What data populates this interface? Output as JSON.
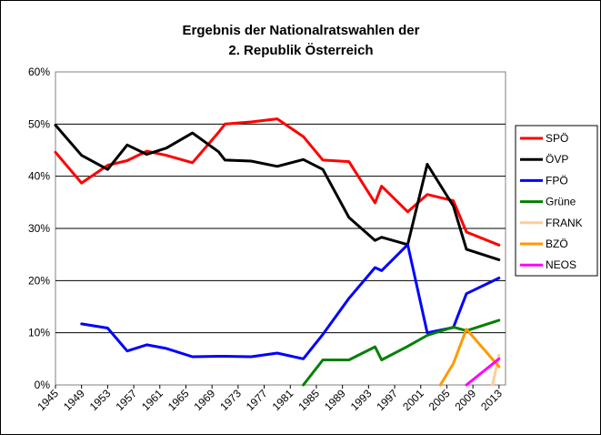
{
  "chart_data": {
    "type": "line",
    "title": "Ergebnis der Nationalratswahlen der",
    "subtitle": "2. Republik Österreich",
    "xlabel": "",
    "ylabel": "",
    "xlim": [
      1945,
      2014
    ],
    "ylim": [
      0,
      60
    ],
    "y_ticks": [
      "0%",
      "10%",
      "20%",
      "30%",
      "40%",
      "50%",
      "60%"
    ],
    "x_ticks": [
      "1945",
      "1949",
      "1953",
      "1957",
      "1961",
      "1965",
      "1969",
      "1973",
      "1977",
      "1981",
      "1985",
      "1989",
      "1993",
      "1997",
      "2001",
      "2005",
      "2009",
      "2013"
    ],
    "grid": true,
    "legend_position": "right",
    "plot_background": "#ffffff",
    "series": [
      {
        "name": "SPÖ",
        "color": "#ff0000",
        "x": [
          1945,
          1949,
          1953,
          1956,
          1959,
          1962,
          1966,
          1970,
          1971,
          1975,
          1979,
          1983,
          1986,
          1990,
          1994,
          1995,
          1999,
          2002,
          2006,
          2008,
          2013
        ],
        "y": [
          44.6,
          38.7,
          42.1,
          43.0,
          44.8,
          44.0,
          42.6,
          48.4,
          50.0,
          50.4,
          51.0,
          47.6,
          43.1,
          42.8,
          34.9,
          38.1,
          33.2,
          36.5,
          35.3,
          29.3,
          26.8
        ]
      },
      {
        "name": "ÖVP",
        "color": "#000000",
        "x": [
          1945,
          1949,
          1953,
          1956,
          1959,
          1962,
          1966,
          1970,
          1971,
          1975,
          1979,
          1983,
          1986,
          1990,
          1994,
          1995,
          1999,
          2002,
          2006,
          2008,
          2013
        ],
        "y": [
          49.8,
          44.0,
          41.3,
          46.0,
          44.2,
          45.4,
          48.3,
          44.7,
          43.1,
          42.9,
          41.9,
          43.2,
          41.3,
          32.1,
          27.7,
          28.3,
          26.9,
          42.3,
          34.3,
          26.0,
          24.0
        ]
      },
      {
        "name": "FPÖ",
        "color": "#0000ff",
        "x": [
          1949,
          1953,
          1956,
          1959,
          1962,
          1966,
          1970,
          1971,
          1975,
          1979,
          1983,
          1986,
          1990,
          1994,
          1995,
          1999,
          2002,
          2006,
          2008,
          2013
        ],
        "y": [
          11.7,
          10.9,
          6.5,
          7.7,
          7.0,
          5.4,
          5.5,
          5.5,
          5.4,
          6.1,
          5.0,
          9.7,
          16.6,
          22.5,
          21.9,
          26.9,
          10.0,
          11.0,
          17.5,
          20.5
        ]
      },
      {
        "name": "Grüne",
        "color": "#008000",
        "x": [
          1983,
          1986,
          1990,
          1994,
          1995,
          1999,
          2002,
          2006,
          2008,
          2013
        ],
        "y": [
          0.0,
          4.8,
          4.8,
          7.3,
          4.8,
          7.4,
          9.5,
          11.1,
          10.4,
          12.4
        ]
      },
      {
        "name": "FRANK",
        "color": "#ffcc99",
        "x": [
          2012,
          2013
        ],
        "y": [
          0.0,
          5.7
        ]
      },
      {
        "name": "BZÖ",
        "color": "#ff9900",
        "x": [
          2004,
          2006,
          2008,
          2013
        ],
        "y": [
          0.0,
          4.1,
          10.7,
          3.5
        ]
      },
      {
        "name": "NEOS",
        "color": "#ff00ff",
        "x": [
          2008,
          2013
        ],
        "y": [
          0.0,
          5.0
        ]
      }
    ]
  }
}
